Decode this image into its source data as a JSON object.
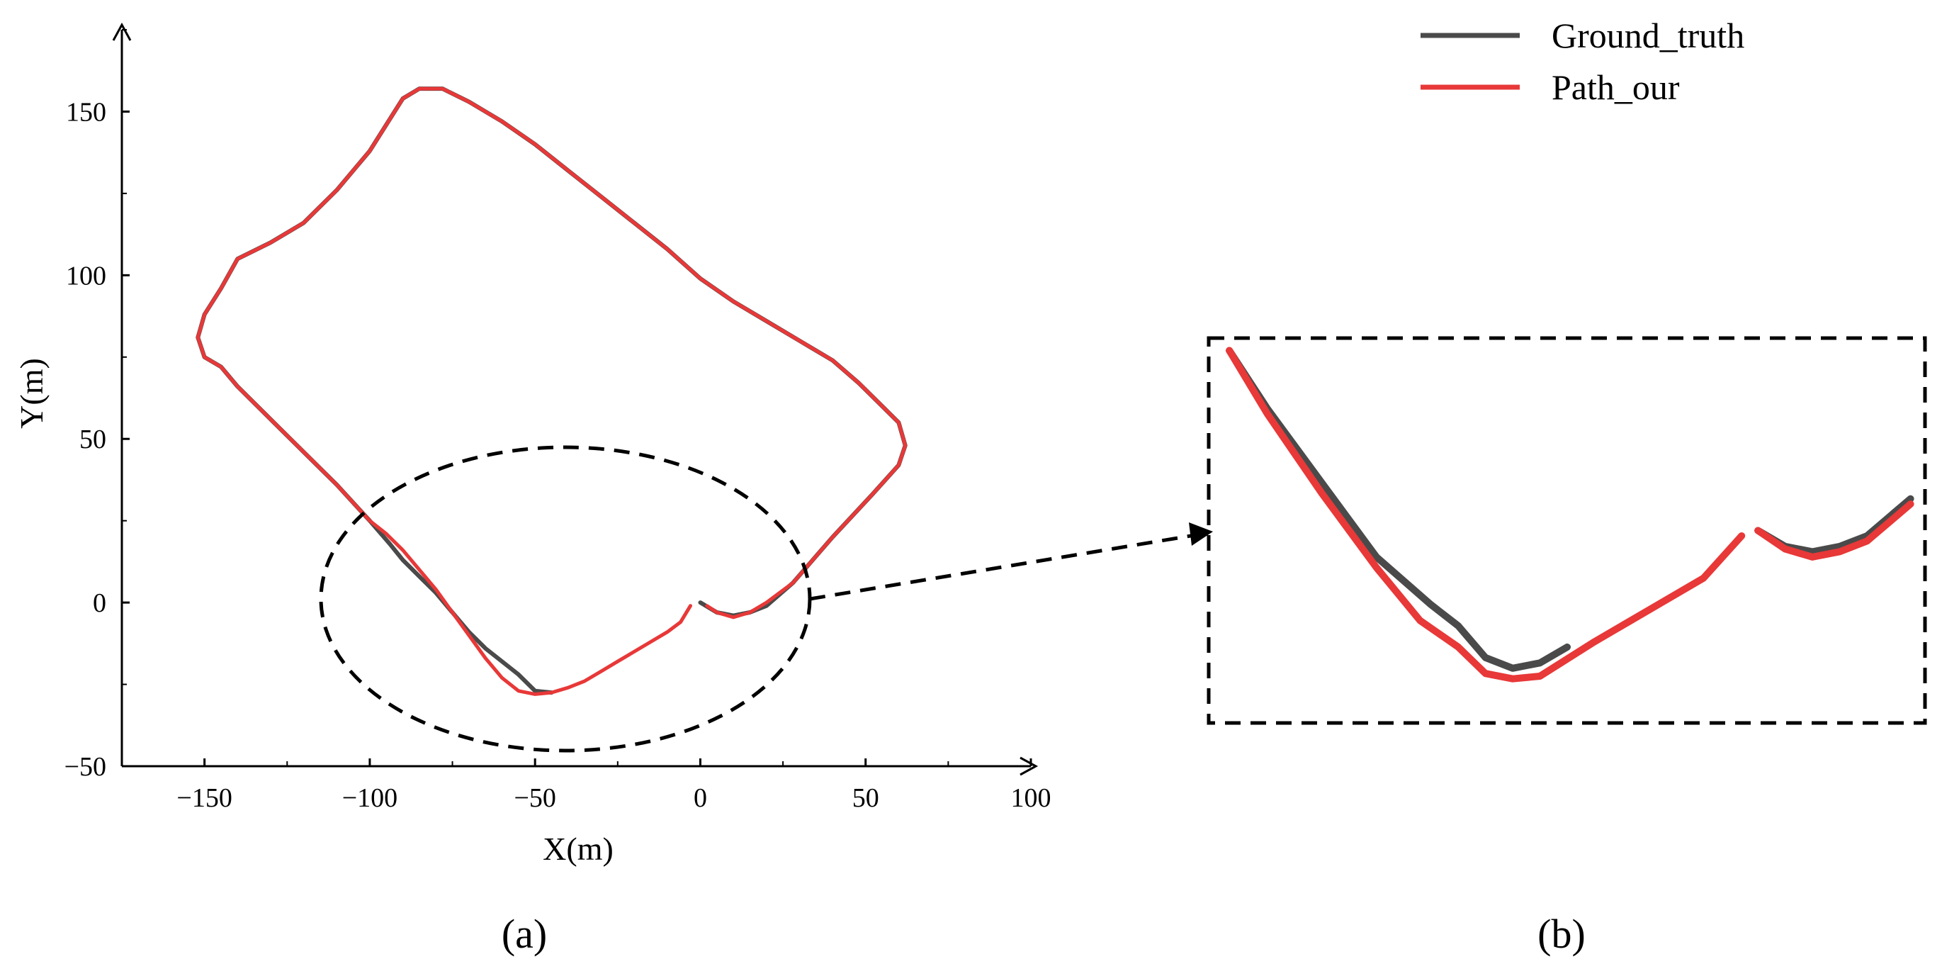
{
  "chart_data": [
    {
      "type": "line",
      "panel_label": "(a)",
      "xlabel": "X(m)",
      "ylabel": "Y(m)",
      "xlim": [
        -175,
        100
      ],
      "ylim": [
        -50,
        175
      ],
      "xticks": [
        -150,
        -100,
        -50,
        0,
        50,
        100
      ],
      "yticks": [
        -50,
        0,
        50,
        100,
        150
      ],
      "xtick_labels": [
        "−150",
        "−100",
        "−50",
        "0",
        "50",
        "100"
      ],
      "ytick_labels": [
        "−50",
        "0",
        "50",
        "100",
        "150"
      ],
      "grid": false,
      "legend_position": "top-right",
      "series": [
        {
          "name": "Ground_truth",
          "color": "#4a4a4a",
          "x": [
            0,
            5,
            10,
            15,
            20,
            28,
            40,
            52,
            60,
            62,
            60,
            55,
            48,
            40,
            30,
            20,
            10,
            0,
            -10,
            -20,
            -30,
            -40,
            -50,
            -60,
            -70,
            -78,
            -85,
            -90,
            -100,
            -110,
            -120,
            -130,
            -140,
            -145,
            -150,
            -152,
            -150,
            -145,
            -140,
            -130,
            -120,
            -110,
            -100,
            -94,
            -90,
            -85,
            -80,
            -75,
            -70,
            -65,
            -60,
            -55,
            -50,
            -45
          ],
          "y": [
            0,
            -3,
            -4,
            -3,
            -1,
            6,
            20,
            33,
            42,
            48,
            55,
            60,
            67,
            74,
            80,
            86,
            92,
            99,
            108,
            116,
            124,
            132,
            140,
            147,
            153,
            157,
            157,
            154,
            138,
            126,
            116,
            110,
            105,
            96,
            88,
            81,
            75,
            72,
            66,
            56,
            46,
            36,
            25,
            18,
            13,
            8,
            3,
            -3,
            -9,
            -14,
            -18,
            -22,
            -27,
            -27.5
          ]
        },
        {
          "name": "Path_our",
          "color": "#e83838",
          "x": [
            -3,
            -6,
            -10,
            -15,
            -20,
            -25,
            -30,
            -35,
            -40,
            -45,
            -50,
            -55,
            -60,
            -65,
            -70,
            -75,
            -80,
            -85,
            -90,
            -95,
            -100,
            -110,
            -120,
            -130,
            -140,
            -145,
            -150,
            -152,
            -150,
            -145,
            -140,
            -130,
            -120,
            -110,
            -100,
            -90,
            -85,
            -80,
            -78,
            -70,
            -60,
            -50,
            -40,
            -30,
            -20,
            -10,
            0,
            10,
            20,
            30,
            40,
            48,
            55,
            60,
            62,
            60,
            52,
            40,
            28,
            20,
            15,
            10,
            5,
            2
          ],
          "y": [
            -1,
            -6,
            -9,
            -12,
            -15,
            -18,
            -21,
            -24,
            -26,
            -27.5,
            -28,
            -27,
            -23,
            -17,
            -10,
            -3,
            4,
            10,
            16,
            21,
            25,
            36,
            46,
            56,
            66,
            72,
            75,
            81,
            88,
            96,
            105,
            110,
            116,
            126,
            138,
            154,
            157,
            157,
            157,
            153,
            147,
            140,
            132,
            124,
            116,
            108,
            99,
            92,
            86,
            80,
            74,
            67,
            60,
            55,
            48,
            42,
            33,
            20,
            6,
            0,
            -3,
            -4.5,
            -3,
            -1
          ]
        }
      ]
    },
    {
      "type": "line",
      "panel_label": "(b)",
      "xlim": [
        -100,
        30
      ],
      "ylim": [
        -35,
        35
      ],
      "series": [
        {
          "name": "Ground_truth",
          "color": "#4a4a4a",
          "x": [
            -97,
            -90,
            -80,
            -70,
            -60,
            -55,
            -50,
            -45,
            -40,
            -35
          ],
          "y": [
            34,
            23,
            9,
            -5,
            -14,
            -18,
            -24,
            -26,
            -25,
            -22
          ],
          "x2": [
            0,
            5,
            10,
            15,
            20,
            28
          ],
          "y2": [
            0,
            -3,
            -4,
            -3,
            -1,
            6
          ]
        },
        {
          "name": "Path_our",
          "color": "#e83838",
          "x": [
            -97,
            -90,
            -80,
            -70,
            -62,
            -55,
            -50,
            -45,
            -40,
            -30,
            -20,
            -10,
            -3
          ],
          "y": [
            34,
            22,
            7,
            -7,
            -17,
            -22,
            -27,
            -28,
            -27.5,
            -21,
            -15,
            -9,
            -1
          ],
          "x2": [
            0,
            5,
            10,
            15,
            20,
            28
          ],
          "y2": [
            0,
            -3.5,
            -5,
            -4,
            -2,
            5
          ]
        }
      ]
    }
  ],
  "legend": {
    "items": [
      {
        "label": "Ground_truth",
        "color": "#4a4a4a"
      },
      {
        "label": "Path_our",
        "color": "#e83838"
      }
    ]
  },
  "panels": {
    "a_label": "(a)",
    "b_label": "(b)"
  }
}
